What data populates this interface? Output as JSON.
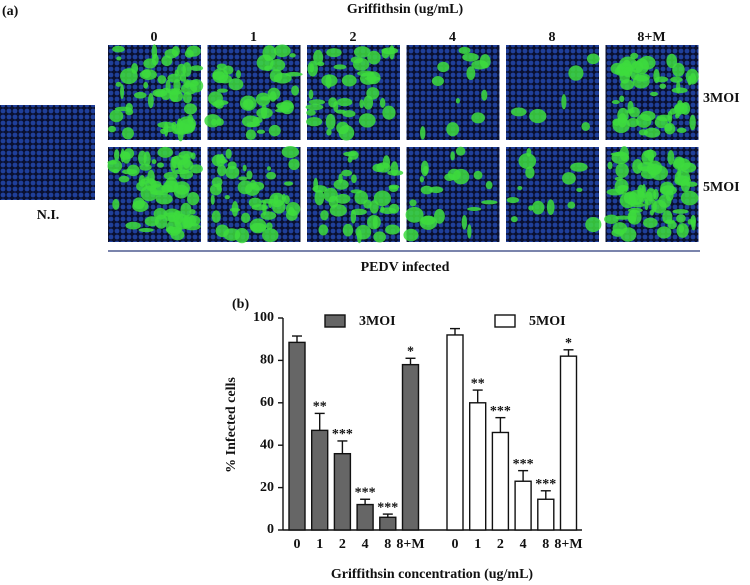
{
  "panel_a": {
    "label": "(a)",
    "title": "Griffithsin (ug/mL)",
    "columns": [
      "0",
      "1",
      "2",
      "4",
      "8",
      "8+M"
    ],
    "rows": [
      "3MOI",
      "5MOI"
    ],
    "control": "N.I.",
    "group_label": "PEDV infected"
  },
  "chart_data": {
    "type": "bar",
    "panel_label": "(b)",
    "ylabel": "% Infected cells",
    "xlabel": "Griffithsin concentration (ug/mL)",
    "categories": [
      "0",
      "1",
      "2",
      "4",
      "8",
      "8+M"
    ],
    "ylim": [
      0,
      100
    ],
    "yticks": [
      0,
      20,
      40,
      60,
      80,
      100
    ],
    "series": [
      {
        "name": "3MOI",
        "color": "#666666",
        "values": [
          88.5,
          47,
          36,
          12,
          6,
          78
        ],
        "errors": [
          3,
          8,
          6,
          2.5,
          1.5,
          3
        ],
        "significance": [
          null,
          "**",
          "***",
          "***",
          "***",
          "*"
        ]
      },
      {
        "name": "5MOI",
        "color": "#ffffff",
        "values": [
          92,
          60,
          46,
          23,
          14.5,
          82
        ],
        "errors": [
          3,
          6,
          7,
          5,
          4,
          3
        ],
        "significance": [
          null,
          "**",
          "***",
          "***",
          "***",
          "*"
        ]
      }
    ]
  }
}
